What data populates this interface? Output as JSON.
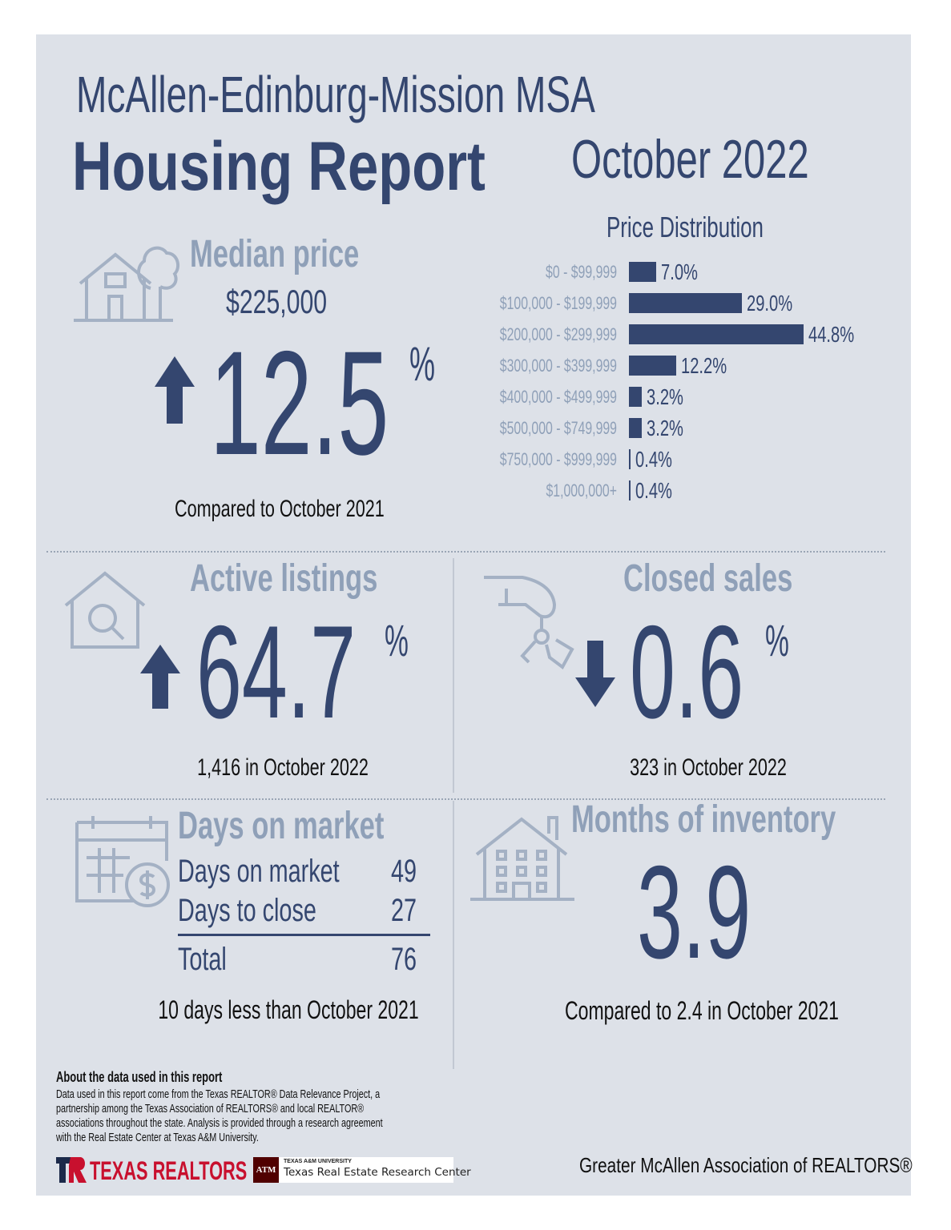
{
  "header": {
    "region": "McAllen-Edinburg-Mission MSA",
    "title": "Housing Report",
    "period": "October 2022"
  },
  "median_price": {
    "heading": "Median price",
    "value": "$225,000",
    "change": "12.5",
    "unit": "%",
    "direction": "up",
    "note": "Compared to October 2021",
    "icon": "house-tree-icon"
  },
  "active_listings": {
    "heading": "Active listings",
    "change": "64.7",
    "unit": "%",
    "direction": "up",
    "note": "1,416 in October 2022",
    "icon": "house-search-icon"
  },
  "closed_sales": {
    "heading": "Closed sales",
    "change": "0.6",
    "unit": "%",
    "direction": "down",
    "note": "323 in October 2022",
    "icon": "hand-keys-icon"
  },
  "days_on_market": {
    "heading": "Days on market",
    "rows": [
      {
        "label": "Days on market",
        "value": "49"
      },
      {
        "label": "Days to close",
        "value": "27"
      }
    ],
    "total": {
      "label": "Total",
      "value": "76"
    },
    "note": "10 days less than October 2021",
    "icon": "calendar-dollar-icon"
  },
  "months_inventory": {
    "heading": "Months of inventory",
    "value": "3.9",
    "note": "Compared to 2.4 in October 2021",
    "icon": "apartment-building-icon"
  },
  "chart_data": {
    "type": "bar",
    "orientation": "horizontal",
    "title": "Price Distribution",
    "categories": [
      "$0 - $99,999",
      "$100,000 - $199,999",
      "$200,000 - $299,999",
      "$300,000 - $399,999",
      "$400,000 - $499,999",
      "$500,000 - $749,999",
      "$750,000 - $999,999",
      "$1,000,000+"
    ],
    "values": [
      7.0,
      29.0,
      44.8,
      12.2,
      3.2,
      3.2,
      0.4,
      0.4
    ],
    "labels": [
      "7.0%",
      "29.0%",
      "44.8%",
      "12.2%",
      "3.2%",
      "3.2%",
      "0.4%",
      "0.4%"
    ],
    "color": "#34466f"
  },
  "footer": {
    "about_title": "About the data used in this report",
    "about_lines": [
      "Data used in this report come from the Texas REALTOR® Data Relevance Project, a",
      "partnership among the Texas Association of REALTORS® and local REALTOR®",
      "associations throughout the state. Analysis is provided through a research agreement",
      "with the Real Estate Center at Texas A&M University."
    ],
    "logo_texas_realtors": "TEXAS REALTORS",
    "logo_tamu_small": "TEXAS A&M UNIVERSITY",
    "logo_tamu": "Texas Real Estate Research Center",
    "logo_tamu_mark": "ATM",
    "association": "Greater McAllen Association of REALTORS®"
  },
  "colors": {
    "navy": "#34466f",
    "light": "#8fa0b8",
    "background": "#dde1e8",
    "realtors_red": "#c8102e",
    "tamu_maroon": "#500000"
  }
}
